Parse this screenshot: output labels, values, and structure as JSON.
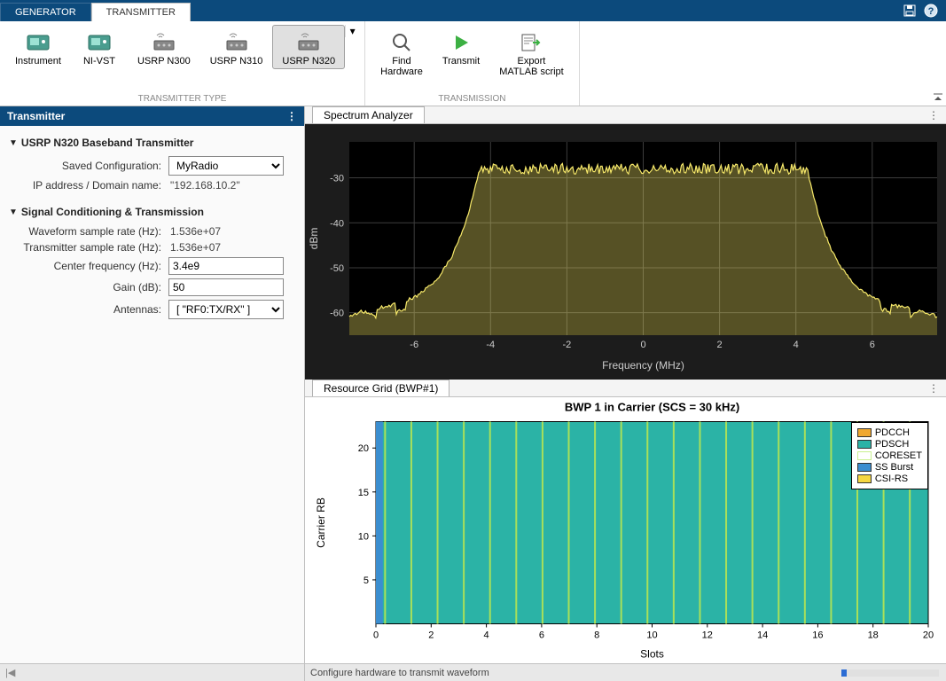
{
  "tabs": {
    "generator": "GENERATOR",
    "transmitter": "TRANSMITTER"
  },
  "ribbon": {
    "type_group_label": "TRANSMITTER TYPE",
    "transmission_group_label": "TRANSMISSION",
    "items": {
      "instrument": "Instrument",
      "nivst": "NI-VST",
      "usrp_n300": "USRP N300",
      "usrp_n310": "USRP N310",
      "usrp_n320": "USRP N320",
      "find_hw": "Find\nHardware",
      "transmit": "Transmit",
      "export": "Export\nMATLAB script"
    }
  },
  "panel": {
    "title": "Transmitter",
    "section1": "USRP N320 Baseband Transmitter",
    "section2": "Signal Conditioning & Transmission",
    "saved_config_label": "Saved Configuration:",
    "saved_config_value": "MyRadio",
    "ip_label": "IP address / Domain name:",
    "ip_value": "\"192.168.10.2\"",
    "wf_rate_label": "Waveform sample rate (Hz):",
    "wf_rate_value": "1.536e+07",
    "tx_rate_label": "Transmitter sample rate (Hz):",
    "tx_rate_value": "1.536e+07",
    "cf_label": "Center frequency (Hz):",
    "cf_value": "3.4e9",
    "gain_label": "Gain (dB):",
    "gain_value": "50",
    "ant_label": "Antennas:",
    "ant_value": "[ \"RF0:TX/RX\" ]"
  },
  "spectrum": {
    "tab": "Spectrum Analyzer",
    "ylabel": "dBm",
    "xlabel": "Frequency (MHz)",
    "xticks": [
      -6,
      -4,
      -2,
      0,
      2,
      4,
      6
    ],
    "yticks": [
      -30,
      -40,
      -50,
      -60
    ],
    "ylim": [
      -65,
      -22
    ],
    "xlim": [
      -7.7,
      7.7
    ],
    "line_color": "#f7e96a",
    "grid_color": "#3d3d3d",
    "bg": "#000000",
    "text_color": "#cccccc",
    "noise_floor": -60.5,
    "passband_level": -28,
    "passband_edges": [
      -4.3,
      4.3
    ],
    "ripple": 1.2
  },
  "resgrid": {
    "tab": "Resource Grid (BWP#1)",
    "title": "BWP 1 in Carrier (SCS = 30 kHz)",
    "ylabel": "Carrier RB",
    "xlabel": "Slots",
    "xticks": [
      0,
      2,
      4,
      6,
      8,
      10,
      12,
      14,
      16,
      18,
      20
    ],
    "yticks": [
      5,
      10,
      15,
      20
    ],
    "xlim": [
      0,
      20
    ],
    "ylim": [
      0,
      23
    ],
    "pdsch_color": "#2bb3a6",
    "pdcch_color": "#f0a830",
    "coreset_color": "#c8f08f",
    "ssburst_color": "#3b8ed0",
    "csirs_color": "#f5d742",
    "stripe_color": "#a8e05a",
    "ss_slot_start": 0,
    "ss_slot_width": 0.25,
    "legend": {
      "pdcch": "PDCCH",
      "pdsch": "PDSCH",
      "coreset": "CORESET",
      "ssburst": "SS Burst",
      "csirs": "CSI-RS"
    }
  },
  "status": {
    "text": "Configure hardware to transmit waveform"
  }
}
